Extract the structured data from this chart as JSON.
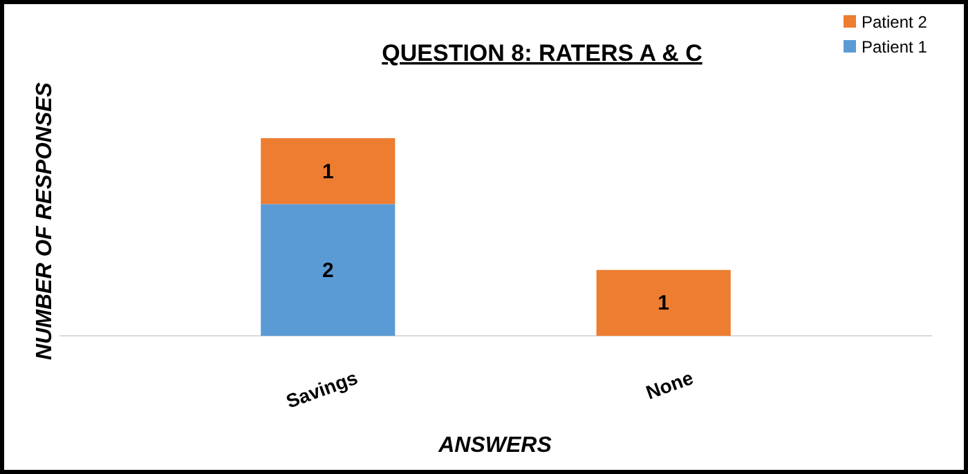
{
  "chart_data": {
    "type": "bar",
    "title": "QUESTION 8: RATERS A & C",
    "xlabel": "ANSWERS",
    "ylabel": "NUMBER OF RESPONSES",
    "categories": [
      "Savings",
      "None"
    ],
    "stacked": true,
    "data_labels": true,
    "legend": "top right",
    "series": [
      {
        "name": "Patient 1",
        "color": "#5b9bd5",
        "values": [
          2,
          null
        ]
      },
      {
        "name": "Patient 2",
        "color": "#ed7d31",
        "values": [
          1,
          1
        ]
      }
    ]
  }
}
